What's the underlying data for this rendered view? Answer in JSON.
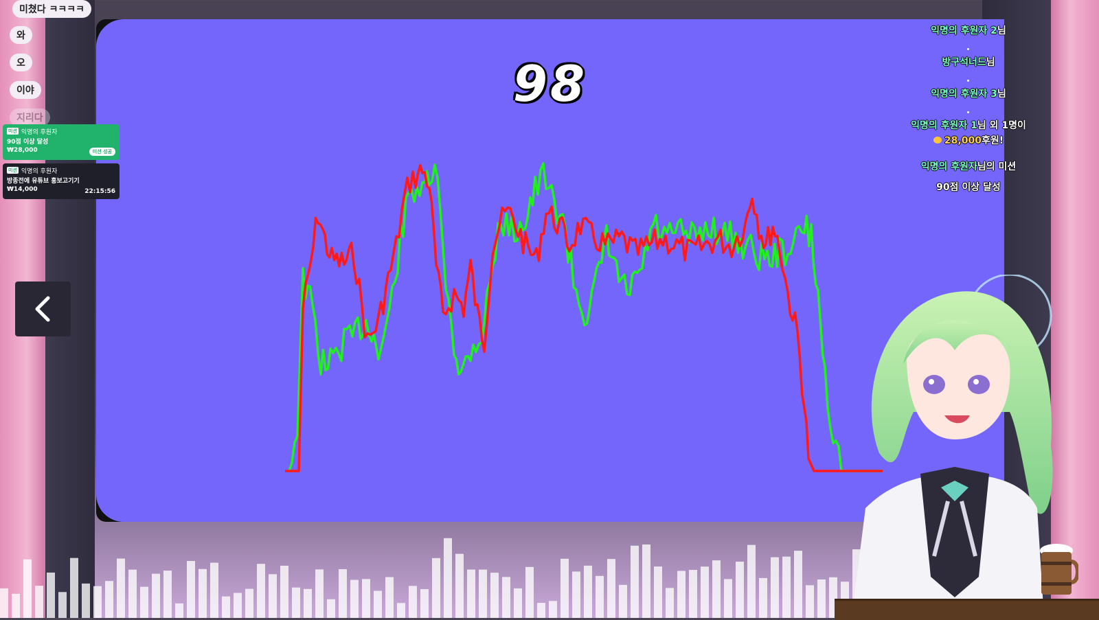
{
  "stream": {
    "score": "98",
    "chat_bubbles": [
      "미쳤다 ㅋㅋㅋㅋ",
      "와",
      "오",
      "이야",
      "지리다"
    ]
  },
  "missions": [
    {
      "tag": "미션",
      "donor": "익명의 후원자",
      "title": "90점 이상 달성",
      "amount": "₩28,000",
      "status": "미션 성공"
    },
    {
      "tag": "미션",
      "donor": "익명의 후원자",
      "title": "방종전에 유튜브 홍보고기기",
      "amount": "₩14,000",
      "timer": "22:15:56"
    }
  ],
  "donor_feed": {
    "line1_name": "익명의 후원자 2",
    "line1_suffix": "님",
    "line2_name": "방구석너드",
    "line2_suffix": "님",
    "line3_name": "익명의 후원자 3",
    "line3_suffix": "님",
    "line4_name": "익명의 후원자 1",
    "line4_suffix": "님 외 1명이",
    "line5_amount": "28,000",
    "line5_suffix": "후원!",
    "line6_name": "익명의 후원자",
    "line6_suffix": "님의 미션",
    "line7": "90점 이상 달성"
  },
  "colors": {
    "screen_bg": "#7466fb",
    "reference_pitch": "#ff1a1a",
    "singer_pitch": "#22ee22",
    "donor_name": "#7dffc8",
    "donation_amount": "#ffd54a"
  },
  "icons": {
    "back": "chevron-left-icon",
    "coin": "coin-icon",
    "mug": "wooden-mug-icon"
  }
}
